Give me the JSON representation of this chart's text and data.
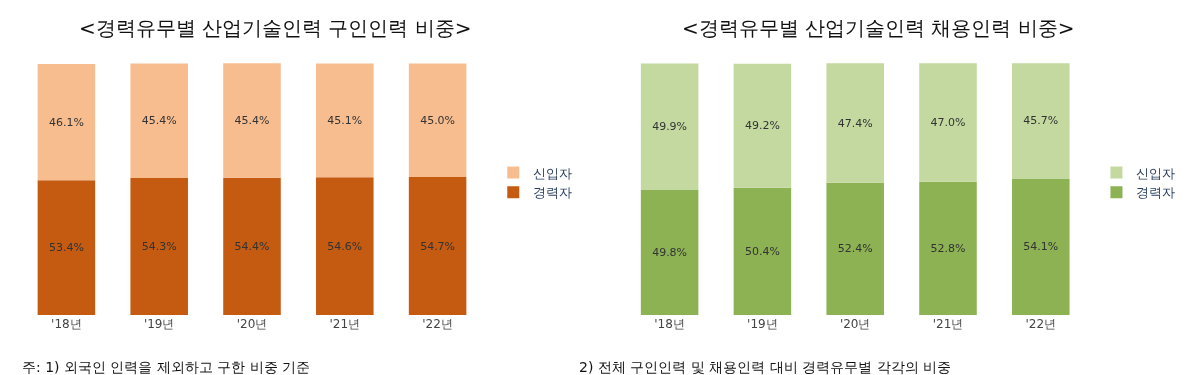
{
  "chart_data": [
    {
      "type": "bar",
      "stacked": true,
      "title": "<경력유무별 산업기술인력 구인인력 비중>",
      "categories": [
        "'18년",
        "'19년",
        "'20년",
        "'21년",
        "'22년"
      ],
      "legend": "right",
      "tick_labels": "x",
      "series": [
        {
          "name": "경력자",
          "color": "#c55a11",
          "values": [
            53.4,
            54.3,
            54.4,
            54.6,
            54.7
          ],
          "value_labels": [
            "53.4%",
            "54.3%",
            "54.4%",
            "54.6%",
            "54.7%"
          ]
        },
        {
          "name": "신입자",
          "color": "#f8bd8f",
          "values": [
            46.1,
            45.4,
            45.4,
            45.1,
            45.0
          ],
          "value_labels": [
            "46.1%",
            "45.4%",
            "45.4%",
            "45.1%",
            "45.0%"
          ]
        }
      ],
      "annotations": [
        "주: 1) 외국인 인력을 제외하고 구한 비중 기준"
      ]
    },
    {
      "type": "bar",
      "stacked": true,
      "title": "<경력유무별 산업기술인력 채용인력 비중>",
      "categories": [
        "'18년",
        "'19년",
        "'20년",
        "'21년",
        "'22년"
      ],
      "legend": "right",
      "tick_labels": "x",
      "series": [
        {
          "name": "경력자",
          "color": "#8db254",
          "values": [
            49.8,
            50.4,
            52.4,
            52.8,
            54.1
          ],
          "value_labels": [
            "49.8%",
            "50.4%",
            "52.4%",
            "52.8%",
            "54.1%"
          ]
        },
        {
          "name": "신입자",
          "color": "#c3d9a0",
          "values": [
            49.9,
            49.2,
            47.4,
            47.0,
            45.7
          ],
          "value_labels": [
            "49.9%",
            "49.2%",
            "47.4%",
            "47.0%",
            "45.7%"
          ]
        }
      ],
      "annotations": [
        "2) 전체 구인인력 및 채용인력 대비 경력유무별 각각의 비중"
      ]
    }
  ]
}
